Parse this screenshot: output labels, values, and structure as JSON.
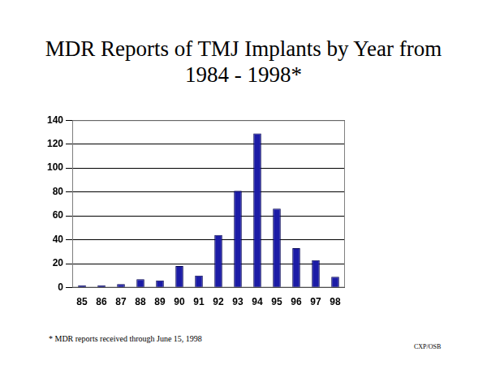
{
  "chart_data": {
    "type": "bar",
    "title": "MDR Reports of TMJ Implants by Year from 1984 - 1998*",
    "categories": [
      "85",
      "86",
      "87",
      "88",
      "89",
      "90",
      "91",
      "92",
      "93",
      "94",
      "95",
      "96",
      "97",
      "98"
    ],
    "values": [
      2,
      2,
      3,
      7,
      6,
      18,
      10,
      44,
      81,
      129,
      66,
      33,
      23,
      9
    ],
    "color": "#1c1ca6",
    "ylim": [
      0,
      140
    ],
    "yticks": [
      0,
      20,
      40,
      60,
      80,
      100,
      120,
      140
    ],
    "grid": true,
    "annotations": [
      "* MDR reports received through June 15, 1998",
      "CXP/OSB"
    ]
  }
}
